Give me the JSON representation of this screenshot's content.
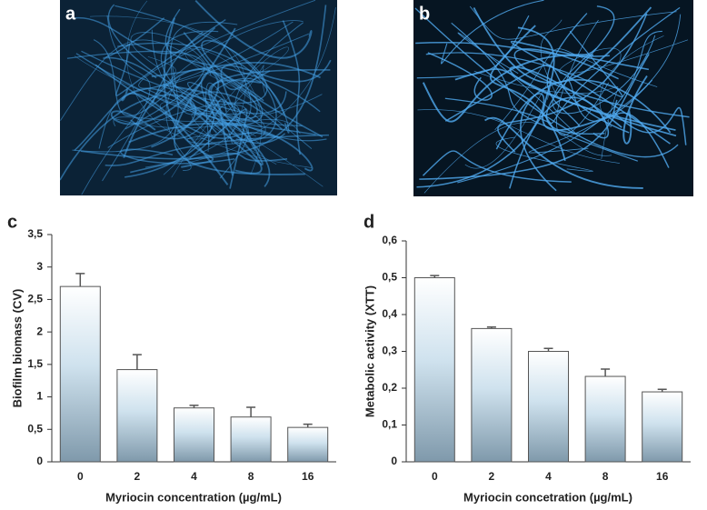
{
  "images": [
    {
      "label": "a"
    },
    {
      "label": "b"
    }
  ],
  "chart_data": [
    {
      "type": "bar",
      "panel_label": "c",
      "x_label": "Myriocin concentration (µg/mL)",
      "y_label": "Biofilm biomass (CV)",
      "categories": [
        "0",
        "2",
        "4",
        "8",
        "16"
      ],
      "series": [
        {
          "values": [
            2.7,
            1.42,
            0.83,
            0.69,
            0.53
          ],
          "errors": [
            0.2,
            0.23,
            0.04,
            0.15,
            0.05
          ]
        }
      ],
      "ylim": [
        0,
        3.5
      ],
      "yticks": [
        0,
        {
          "value": 0.5,
          "label": "0,5"
        },
        1,
        {
          "value": 1.5,
          "label": "1,5"
        },
        2,
        {
          "value": 2.5,
          "label": "2,5"
        },
        3,
        {
          "value": 3.5,
          "label": "3,5"
        }
      ]
    },
    {
      "type": "bar",
      "panel_label": "d",
      "x_label": "Myriocin concetration (µg/mL)",
      "y_label": "Metabolic activity (XTT)",
      "categories": [
        "0",
        "2",
        "4",
        "8",
        "16"
      ],
      "series": [
        {
          "values": [
            0.5,
            0.362,
            0.3,
            0.232,
            0.19
          ],
          "errors": [
            0.006,
            0.004,
            0.008,
            0.02,
            0.007
          ]
        }
      ],
      "ylim": [
        0,
        0.6
      ],
      "yticks": [
        0,
        {
          "value": 0.1,
          "label": "0,1"
        },
        {
          "value": 0.2,
          "label": "0,2"
        },
        {
          "value": 0.3,
          "label": "0,3"
        },
        {
          "value": 0.4,
          "label": "0,4"
        },
        {
          "value": 0.5,
          "label": "0,5"
        },
        {
          "value": 0.6,
          "label": "0,6"
        }
      ]
    }
  ]
}
